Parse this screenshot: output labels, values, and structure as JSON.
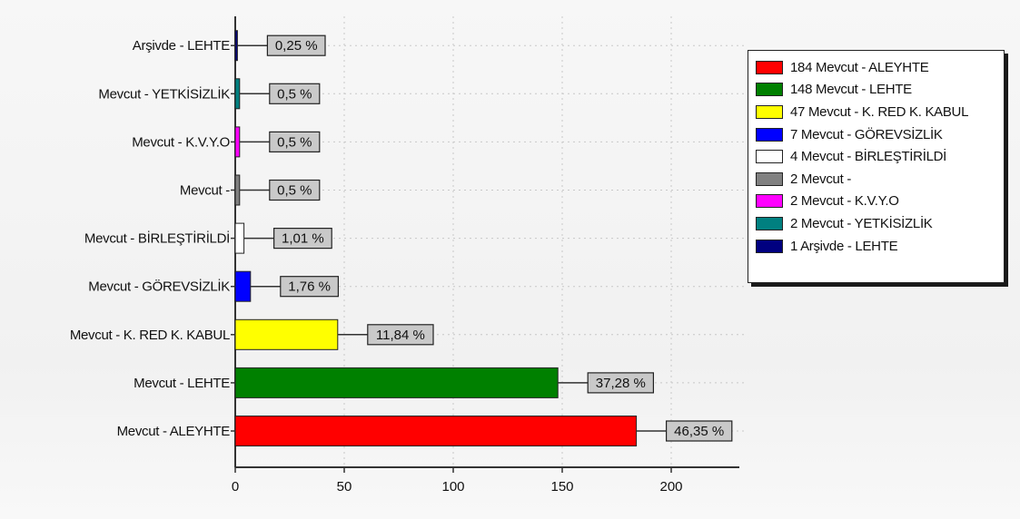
{
  "chart_data": {
    "type": "bar",
    "orientation": "horizontal",
    "categories": [
      "Mevcut - ALEYHTE",
      "Mevcut - LEHTE",
      "Mevcut - K. RED K. KABUL",
      "Mevcut - GÖREVSİZLİK",
      "Mevcut - BİRLEŞTİRİLDİ",
      "Mevcut -",
      "Mevcut - K.V.Y.O",
      "Mevcut - YETKİSİZLİK",
      "Arşivde - LEHTE"
    ],
    "values": [
      184,
      148,
      47,
      7,
      4,
      2,
      2,
      2,
      1
    ],
    "data_labels": [
      "46,35 %",
      "37,28 %",
      "11,84 %",
      "1,76 %",
      "1,01 %",
      "0,5 %",
      "0,5 %",
      "0,5 %",
      "0,25 %"
    ],
    "colors": [
      "#ff0000",
      "#008000",
      "#ffff00",
      "#0000ff",
      "#ffffff",
      "#808080",
      "#ff00ff",
      "#008080",
      "#000080"
    ],
    "xlim": [
      0,
      225
    ],
    "x_ticks": [
      0,
      50,
      100,
      150,
      200
    ],
    "grid": true,
    "legend_position": "right",
    "legend": [
      "184 Mevcut - ALEYHTE",
      "148 Mevcut - LEHTE",
      "47 Mevcut - K. RED K. KABUL",
      "7 Mevcut - GÖREVSİZLİK",
      "4 Mevcut - BİRLEŞTİRİLDİ",
      "2 Mevcut -",
      "2 Mevcut - K.V.Y.O",
      "2 Mevcut - YETKİSİZLİK",
      "1 Arşivde - LEHTE"
    ]
  }
}
